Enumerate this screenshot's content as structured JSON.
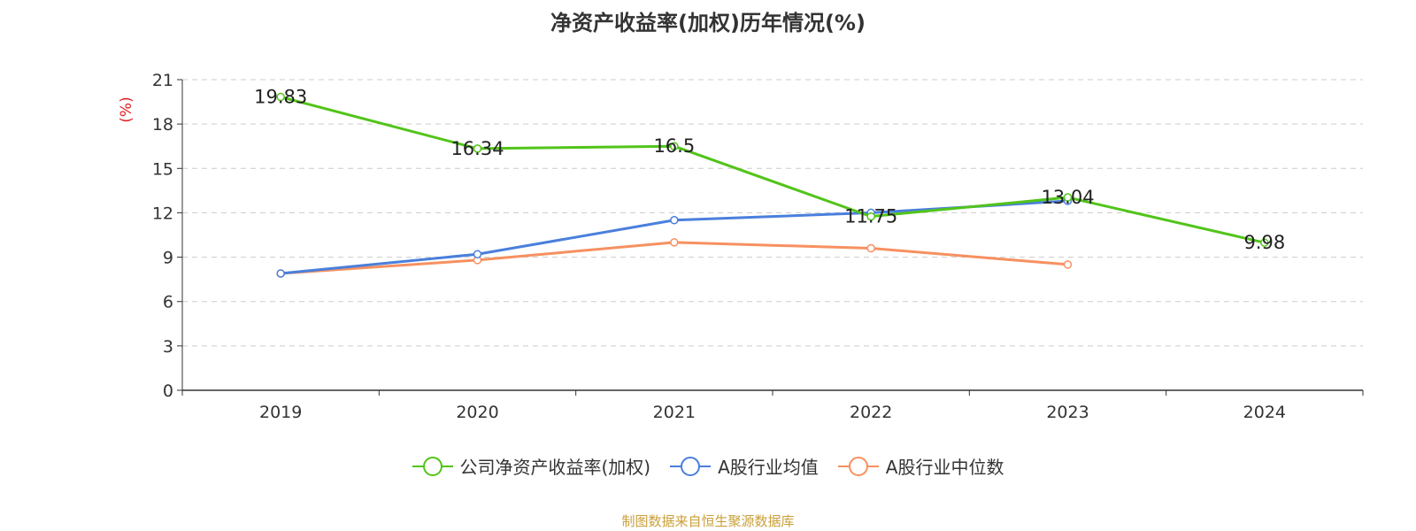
{
  "chart_data": {
    "type": "line",
    "title": "净资产收益率(加权)历年情况(%)",
    "ylabel": "(%)",
    "xlabel": "",
    "categories": [
      "2019",
      "2020",
      "2021",
      "2022",
      "2023",
      "2024"
    ],
    "ylim": [
      0,
      21
    ],
    "yticks": [
      0,
      3,
      6,
      9,
      12,
      15,
      18,
      21
    ],
    "grid": true,
    "legend_position": "bottom",
    "series": [
      {
        "name": "公司净资产收益率(加权)",
        "color": "#52c41a",
        "values": [
          19.83,
          16.34,
          16.5,
          11.75,
          13.04,
          9.98
        ],
        "labels": [
          "19.83",
          "16.34",
          "16.5",
          "11.75",
          "13.04",
          "9.98"
        ]
      },
      {
        "name": "A股行业均值",
        "color": "#4a7fdc",
        "values": [
          7.9,
          9.2,
          11.5,
          12.0,
          12.8,
          null
        ]
      },
      {
        "name": "A股行业中位数",
        "color": "#f79060",
        "values": [
          7.9,
          8.8,
          10.0,
          9.6,
          8.5,
          null
        ]
      }
    ]
  },
  "source_text": "制图数据来自恒生聚源数据库"
}
